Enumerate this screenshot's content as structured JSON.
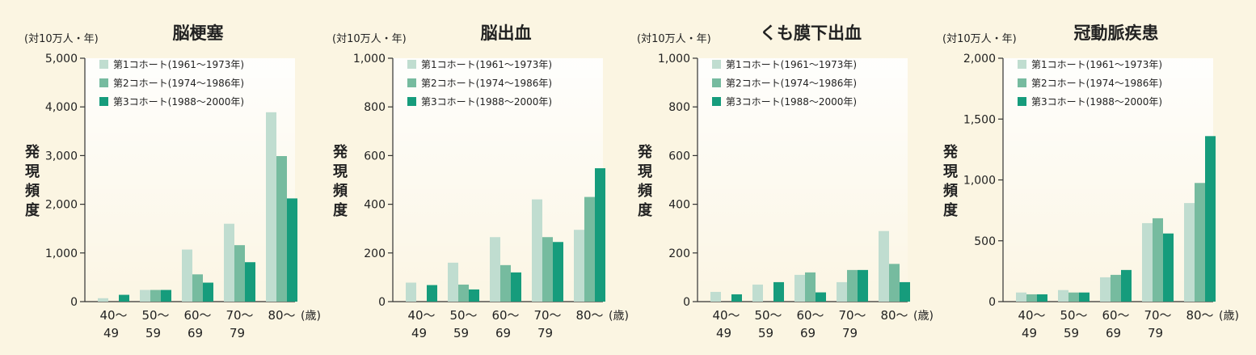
{
  "colors": {
    "background": "#fbf5e2",
    "cohort1": "#c0ddd0",
    "cohort2": "#76bb9f",
    "cohort3": "#169c7c",
    "axis": "#333333",
    "text": "#222222"
  },
  "common": {
    "unit_label": "(対10万人・年)",
    "ylabel_chars": [
      "発",
      "現",
      "頻",
      "度"
    ],
    "age_unit": "(歳)",
    "categories": [
      [
        "40〜",
        "49"
      ],
      [
        "50〜",
        "59"
      ],
      [
        "60〜",
        "69"
      ],
      [
        "70〜",
        "79"
      ],
      [
        "80〜",
        ""
      ]
    ],
    "legend": [
      "第1コホート(1961〜1973年)",
      "第2コホート(1974〜1986年)",
      "第3コホート(1988〜2000年)"
    ]
  },
  "chart_data": [
    {
      "type": "bar",
      "title": "脳梗塞",
      "ylabel": "発現頻度",
      "yunit": "(対10万人・年)",
      "categories": [
        "40〜49",
        "50〜59",
        "60〜69",
        "70〜79",
        "80〜"
      ],
      "xunit": "(歳)",
      "ylim": [
        0,
        5000
      ],
      "yticks": [
        0,
        1000,
        2000,
        3000,
        4000,
        5000
      ],
      "ytick_labels": [
        "0",
        "1,000",
        "2,000",
        "3,000",
        "4,000",
        "5,000"
      ],
      "series": [
        {
          "name": "第1コホート(1961〜1973年)",
          "values": [
            70,
            240,
            1070,
            1600,
            3890
          ]
        },
        {
          "name": "第2コホート(1974〜1986年)",
          "values": [
            0,
            240,
            560,
            1160,
            2990
          ]
        },
        {
          "name": "第3コホート(1988〜2000年)",
          "values": [
            140,
            240,
            390,
            810,
            2120
          ]
        }
      ]
    },
    {
      "type": "bar",
      "title": "脳出血",
      "ylabel": "発現頻度",
      "yunit": "(対10万人・年)",
      "categories": [
        "40〜49",
        "50〜59",
        "60〜69",
        "70〜79",
        "80〜"
      ],
      "xunit": "(歳)",
      "ylim": [
        0,
        1000
      ],
      "yticks": [
        0,
        200,
        400,
        600,
        800,
        1000
      ],
      "ytick_labels": [
        "0",
        "200",
        "400",
        "600",
        "800",
        "1,000"
      ],
      "series": [
        {
          "name": "第1コホート(1961〜1973年)",
          "values": [
            78,
            160,
            265,
            420,
            295
          ]
        },
        {
          "name": "第2コホート(1974〜1986年)",
          "values": [
            0,
            70,
            150,
            265,
            430
          ]
        },
        {
          "name": "第3コホート(1988〜2000年)",
          "values": [
            68,
            50,
            120,
            245,
            548
          ]
        }
      ]
    },
    {
      "type": "bar",
      "title": "くも膜下出血",
      "ylabel": "発現頻度",
      "yunit": "(対10万人・年)",
      "categories": [
        "40〜49",
        "50〜59",
        "60〜69",
        "70〜79",
        "80〜"
      ],
      "xunit": "(歳)",
      "ylim": [
        0,
        1000
      ],
      "yticks": [
        0,
        200,
        400,
        600,
        800,
        1000
      ],
      "ytick_labels": [
        "0",
        "200",
        "400",
        "600",
        "800",
        "1,000"
      ],
      "series": [
        {
          "name": "第1コホート(1961〜1973年)",
          "values": [
            40,
            70,
            110,
            80,
            290
          ]
        },
        {
          "name": "第2コホート(1974〜1986年)",
          "values": [
            0,
            0,
            120,
            130,
            155
          ]
        },
        {
          "name": "第3コホート(1988〜2000年)",
          "values": [
            30,
            80,
            38,
            130,
            80
          ]
        }
      ]
    },
    {
      "type": "bar",
      "title": "冠動脈疾患",
      "ylabel": "発現頻度",
      "yunit": "(対10万人・年)",
      "categories": [
        "40〜49",
        "50〜59",
        "60〜69",
        "70〜79",
        "80〜"
      ],
      "xunit": "(歳)",
      "ylim": [
        0,
        2000
      ],
      "yticks": [
        0,
        500,
        1000,
        1500,
        2000
      ],
      "ytick_labels": [
        "0",
        "500",
        "1,000",
        "1,500",
        "2,000"
      ],
      "series": [
        {
          "name": "第1コホート(1961〜1973年)",
          "values": [
            75,
            95,
            200,
            645,
            810
          ]
        },
        {
          "name": "第2コホート(1974〜1986年)",
          "values": [
            60,
            75,
            220,
            685,
            975
          ]
        },
        {
          "name": "第3コホート(1988〜2000年)",
          "values": [
            60,
            75,
            260,
            560,
            1360
          ]
        }
      ]
    }
  ]
}
